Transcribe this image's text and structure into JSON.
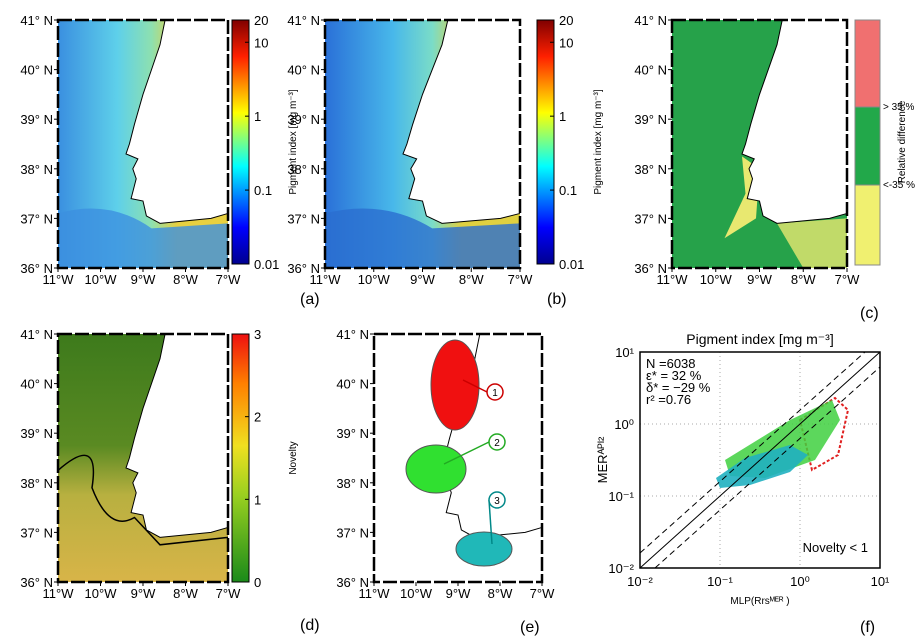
{
  "map_axes": {
    "lat_ticks": [
      {
        "value": 41,
        "label": "41° N"
      },
      {
        "value": 40,
        "label": "40° N"
      },
      {
        "value": 39,
        "label": "39° N"
      },
      {
        "value": 38,
        "label": "38° N"
      },
      {
        "value": 37,
        "label": "37° N"
      },
      {
        "value": 36,
        "label": "36° N"
      }
    ],
    "lon_ticks": [
      {
        "value": -11,
        "label": "11°W"
      },
      {
        "value": -10,
        "label": "10°W"
      },
      {
        "value": -9,
        "label": "9°W"
      },
      {
        "value": -8,
        "label": "8°W"
      },
      {
        "value": -7,
        "label": "7°W"
      }
    ]
  },
  "panels": {
    "a": {
      "label": "(a)",
      "colorbar": {
        "title": "Pigment index [mg m⁻³]",
        "ticks": [
          20,
          10,
          1,
          0.1,
          0.01
        ]
      }
    },
    "b": {
      "label": "(b)",
      "colorbar": {
        "title": "Pigment index [mg m⁻³]",
        "ticks": [
          20,
          10,
          1,
          0.1,
          0.01
        ]
      }
    },
    "c": {
      "label": "(c)",
      "legend": {
        "title": "Relative difference",
        "upper": "> 35 %",
        "lower": "<-35 %"
      }
    },
    "d": {
      "label": "(d)",
      "colorbar": {
        "title": "Novelty",
        "ticks": [
          0,
          1,
          2,
          3
        ]
      }
    },
    "e": {
      "label": "(e)",
      "regions": [
        "1",
        "2",
        "3"
      ]
    },
    "f": {
      "label": "(f)",
      "title": "Pigment index [mg m⁻³]",
      "x_label": "MLP(Rrsᴹᴱᴿ )",
      "y_label": "MERᴬᴾᴵ²",
      "xlim": [
        0.01,
        10
      ],
      "ylim": [
        0.01,
        10
      ],
      "xticks": [
        {
          "value": 0.01,
          "label": "10⁻²"
        },
        {
          "value": 0.1,
          "label": "10⁻¹"
        },
        {
          "value": 1,
          "label": "10⁰"
        },
        {
          "value": 10,
          "label": "10¹"
        }
      ],
      "yticks": [
        {
          "value": 0.01,
          "label": "10⁻²"
        },
        {
          "value": 0.1,
          "label": "10⁻¹"
        },
        {
          "value": 1,
          "label": "10⁰"
        },
        {
          "value": 10,
          "label": "10¹"
        }
      ],
      "stats": [
        "N =6038",
        "ε* = 32 %",
        "δ* = −29 %",
        "r² =0.76"
      ],
      "note": "Novelty < 1"
    }
  }
}
